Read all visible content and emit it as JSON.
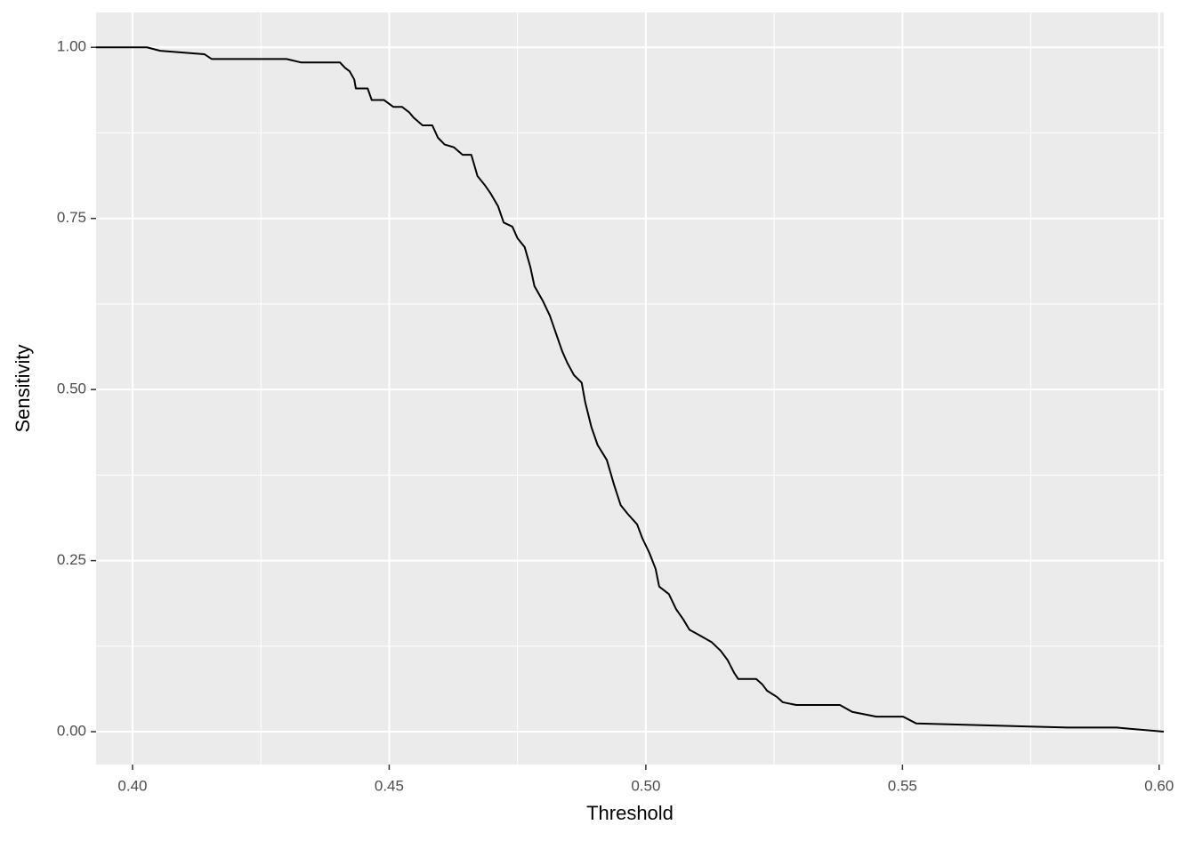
{
  "chart_data": {
    "type": "line",
    "x_label": "Threshold",
    "y_label": "Sensitivity",
    "xlim": [
      0.3929,
      0.6009
    ],
    "ylim": [
      -0.048,
      1.051
    ],
    "xticks": [
      {
        "value": 0.4,
        "label": "0.40"
      },
      {
        "value": 0.45,
        "label": "0.45"
      },
      {
        "value": 0.5,
        "label": "0.50"
      },
      {
        "value": 0.55,
        "label": "0.55"
      },
      {
        "value": 0.6,
        "label": "0.60"
      }
    ],
    "yticks": [
      {
        "value": 0,
        "label": "0.00"
      },
      {
        "value": 0.25,
        "label": "0.25"
      },
      {
        "value": 0.5,
        "label": "0.50"
      },
      {
        "value": 0.75,
        "label": "0.75"
      },
      {
        "value": 1,
        "label": "1.00"
      }
    ],
    "grid": true,
    "series": [
      {
        "color": "#000000",
        "x": [
          0.3929,
          0.4028,
          0.4054,
          0.414,
          0.4154,
          0.43,
          0.4328,
          0.4404,
          0.4414,
          0.4423,
          0.4432,
          0.4435,
          0.4458,
          0.4466,
          0.449,
          0.4508,
          0.4525,
          0.4539,
          0.4548,
          0.4565,
          0.4584,
          0.4595,
          0.4608,
          0.4626,
          0.4643,
          0.466,
          0.4672,
          0.4686,
          0.4698,
          0.4712,
          0.4723,
          0.474,
          0.475,
          0.4764,
          0.4775,
          0.4783,
          0.4799,
          0.4813,
          0.4825,
          0.4837,
          0.4847,
          0.486,
          0.4875,
          0.4882,
          0.4894,
          0.4906,
          0.4924,
          0.4938,
          0.4951,
          0.4965,
          0.4983,
          0.4993,
          0.5007,
          0.5019,
          0.5026,
          0.5045,
          0.5059,
          0.5073,
          0.5085,
          0.5102,
          0.5128,
          0.5146,
          0.5159,
          0.5172,
          0.518,
          0.5215,
          0.5227,
          0.5236,
          0.5255,
          0.5267,
          0.5293,
          0.5378,
          0.5402,
          0.5449,
          0.5501,
          0.5527,
          0.5822,
          0.5917,
          0.6009
        ],
        "values": [
          1.0,
          1.0,
          0.995,
          0.99,
          0.983,
          0.983,
          0.978,
          0.978,
          0.97,
          0.965,
          0.953,
          0.94,
          0.94,
          0.923,
          0.923,
          0.913,
          0.913,
          0.905,
          0.897,
          0.886,
          0.886,
          0.868,
          0.858,
          0.854,
          0.843,
          0.843,
          0.812,
          0.799,
          0.786,
          0.768,
          0.744,
          0.738,
          0.721,
          0.708,
          0.679,
          0.651,
          0.63,
          0.608,
          0.582,
          0.556,
          0.539,
          0.521,
          0.51,
          0.481,
          0.445,
          0.419,
          0.397,
          0.361,
          0.331,
          0.318,
          0.303,
          0.283,
          0.261,
          0.238,
          0.212,
          0.201,
          0.179,
          0.164,
          0.149,
          0.142,
          0.131,
          0.118,
          0.105,
          0.086,
          0.077,
          0.077,
          0.069,
          0.06,
          0.051,
          0.043,
          0.039,
          0.039,
          0.029,
          0.022,
          0.022,
          0.012,
          0.006,
          0.006,
          0.0
        ]
      }
    ]
  }
}
